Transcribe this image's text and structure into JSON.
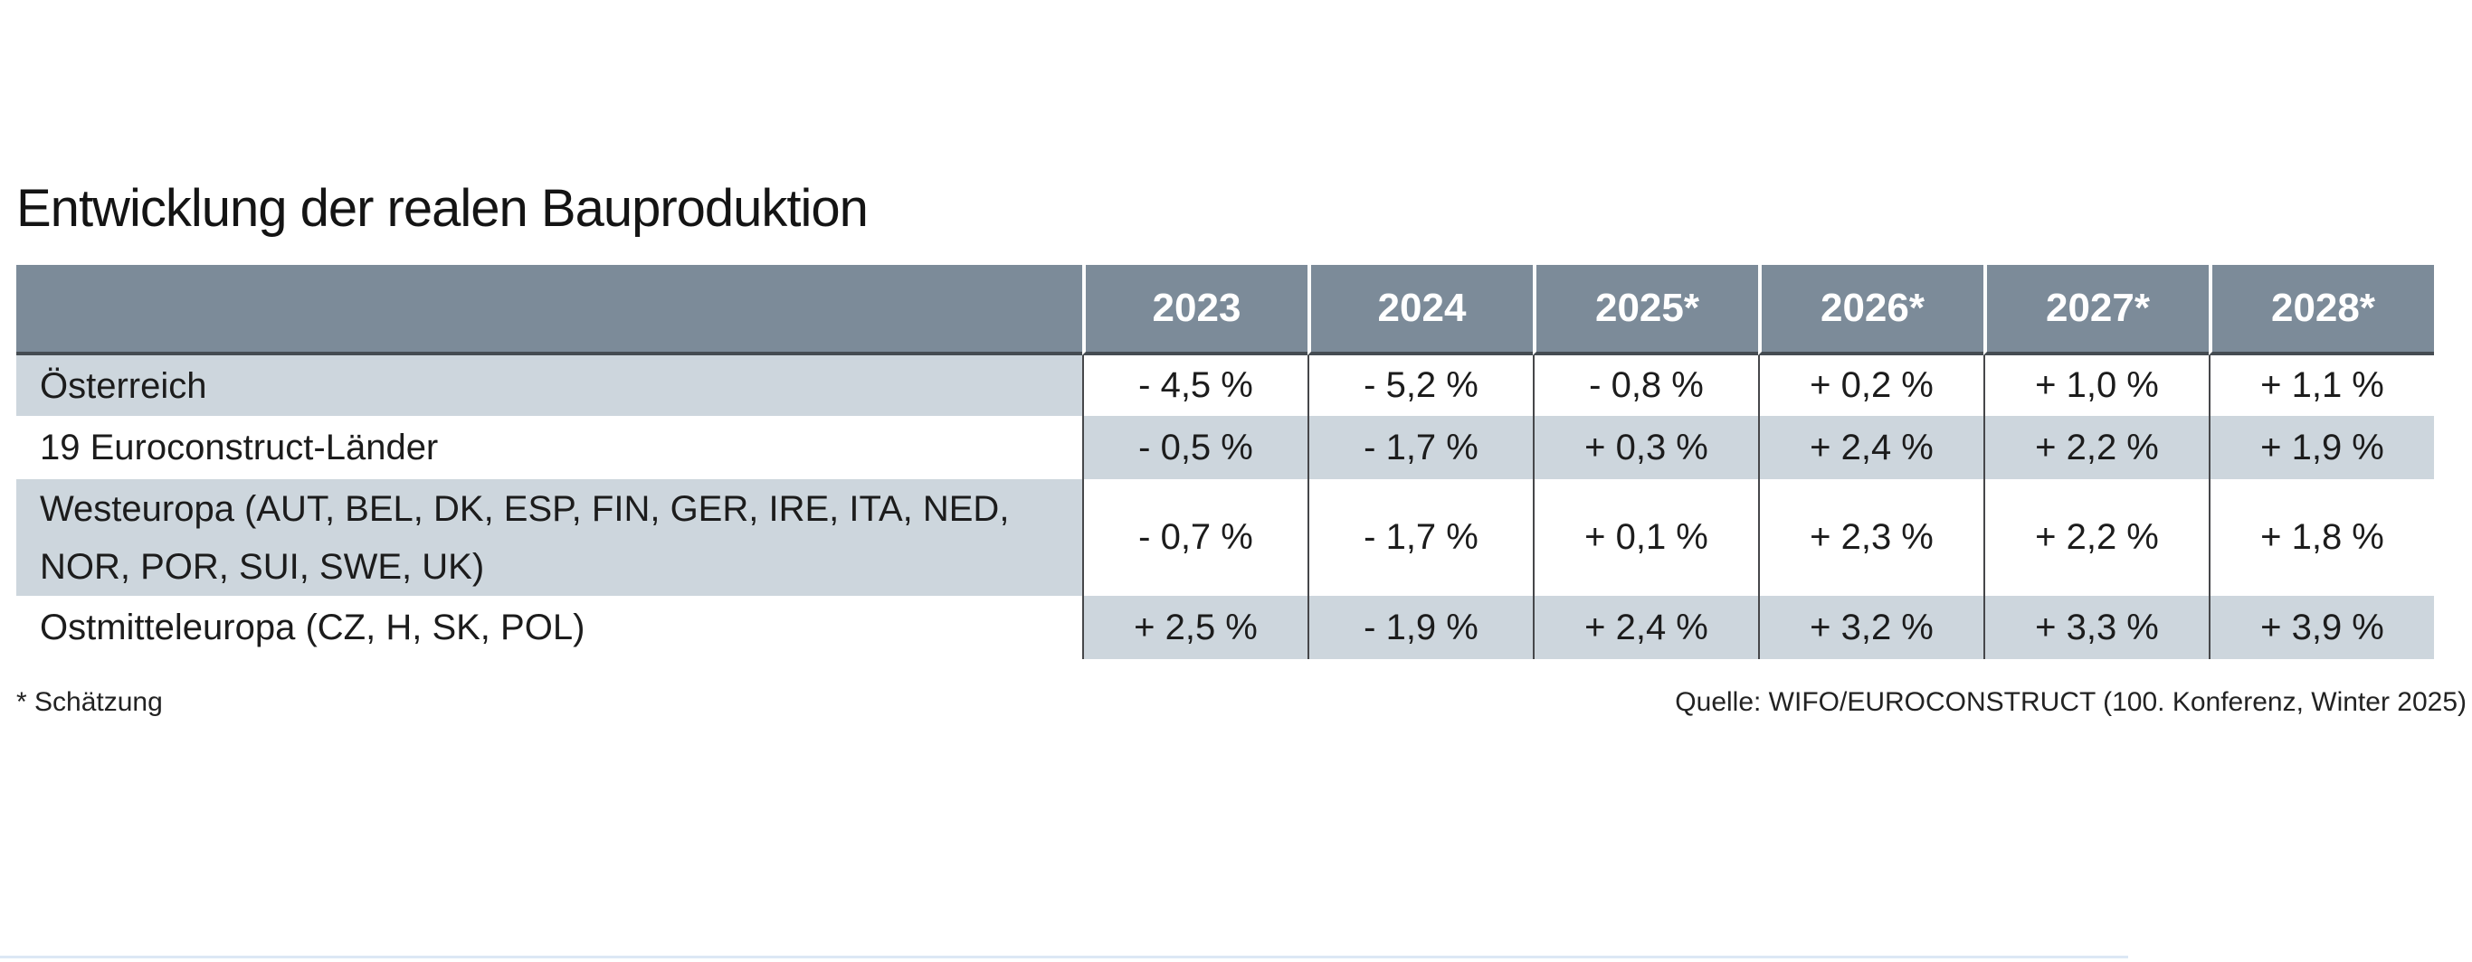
{
  "title": "Entwicklung der realen Bauproduktion",
  "table": {
    "columns": [
      "2023",
      "2024",
      "2025*",
      "2026*",
      "2027*",
      "2028*"
    ],
    "rows": [
      {
        "label": "Österreich",
        "values": [
          "- 4,5 %",
          "- 5,2 %",
          "- 0,8 %",
          "+ 0,2 %",
          "+ 1,0 %",
          "+ 1,1 %"
        ]
      },
      {
        "label": "19 Euroconstruct-Länder",
        "values": [
          "- 0,5 %",
          "- 1,7 %",
          "+ 0,3 %",
          "+ 2,4 %",
          "+ 2,2 %",
          "+ 1,9 %"
        ]
      },
      {
        "label": "Westeuropa (AUT, BEL, DK, ESP, FIN, GER, IRE, ITA, NED, NOR, POR, SUI, SWE, UK)",
        "values": [
          "- 0,7 %",
          "- 1,7 %",
          "+ 0,1 %",
          "+ 2,3 %",
          "+ 2,2 %",
          "+ 1,8 %"
        ]
      },
      {
        "label": "Ostmitteleuropa (CZ, H, SK, POL)",
        "values": [
          "+ 2,5 %",
          "- 1,9 %",
          "+ 2,4 %",
          "+ 3,2 %",
          "+ 3,3 %",
          "+ 3,9 %"
        ]
      }
    ]
  },
  "footnote": "* Schätzung",
  "source": "Quelle: WIFO/EUROCONSTRUCT (100. Konferenz, Winter 2025)",
  "colors": {
    "header_bg": "#7c8b99",
    "row_alt_bg": "#cdd6dd",
    "hairline": "#dce8f5"
  },
  "chart_data": {
    "type": "table",
    "title": "Entwicklung der realen Bauproduktion",
    "categories": [
      "2023",
      "2024",
      "2025*",
      "2026*",
      "2027*",
      "2028*"
    ],
    "series": [
      {
        "name": "Österreich",
        "values": [
          -4.5,
          -5.2,
          -0.8,
          0.2,
          1.0,
          1.1
        ]
      },
      {
        "name": "19 Euroconstruct-Länder",
        "values": [
          -0.5,
          -1.7,
          0.3,
          2.4,
          2.2,
          1.9
        ]
      },
      {
        "name": "Westeuropa (AUT, BEL, DK, ESP, FIN, GER, IRE, ITA, NED, NOR, POR, SUI, SWE, UK)",
        "values": [
          -0.7,
          -1.7,
          0.1,
          2.3,
          2.2,
          1.8
        ]
      },
      {
        "name": "Ostmitteleuropa (CZ, H, SK, POL)",
        "values": [
          2.5,
          -1.9,
          2.4,
          3.2,
          3.3,
          3.9
        ]
      }
    ],
    "unit": "%",
    "footnote": "* Schätzung",
    "source": "Quelle: WIFO/EUROCONSTRUCT (100. Konferenz, Winter 2025)"
  }
}
